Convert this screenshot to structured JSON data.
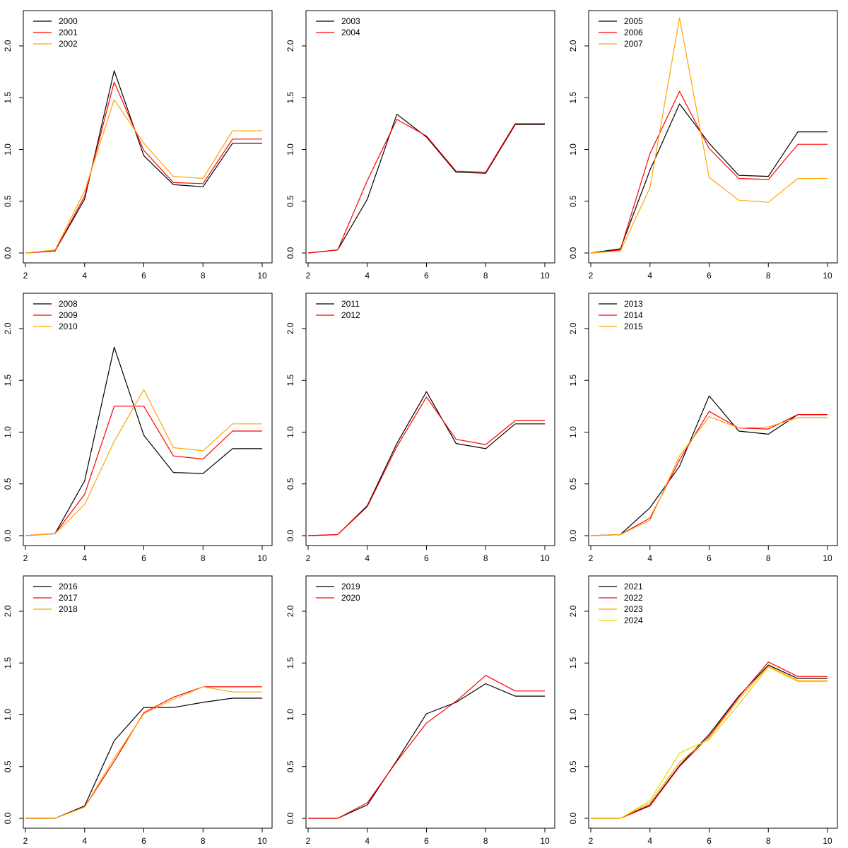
{
  "chart_data": [
    {
      "type": "line",
      "x": [
        2,
        3,
        4,
        5,
        6,
        7,
        8,
        9,
        10
      ],
      "xlim": [
        2,
        10
      ],
      "ylim": [
        0,
        2.3
      ],
      "xticks": [
        "2",
        "4",
        "6",
        "8",
        "10"
      ],
      "yticks": [
        "0.0",
        "0.5",
        "1.0",
        "1.5",
        "2.0"
      ],
      "legend_position": "top-left",
      "grid": false,
      "series": [
        {
          "name": "2000",
          "color": "#000000",
          "values": [
            0.0,
            0.02,
            0.52,
            1.76,
            0.94,
            0.66,
            0.64,
            1.06,
            1.06
          ]
        },
        {
          "name": "2001",
          "color": "#ff0000",
          "values": [
            0.0,
            0.02,
            0.55,
            1.65,
            0.99,
            0.68,
            0.67,
            1.1,
            1.1
          ]
        },
        {
          "name": "2002",
          "color": "#ffa500",
          "values": [
            0.0,
            0.03,
            0.6,
            1.48,
            1.06,
            0.74,
            0.72,
            1.18,
            1.18
          ]
        }
      ]
    },
    {
      "type": "line",
      "x": [
        2,
        3,
        4,
        5,
        6,
        7,
        8,
        9,
        10
      ],
      "xlim": [
        2,
        10
      ],
      "ylim": [
        0,
        2.3
      ],
      "xticks": [
        "2",
        "4",
        "6",
        "8",
        "10"
      ],
      "yticks": [
        "0.0",
        "0.5",
        "1.0",
        "1.5",
        "2.0"
      ],
      "legend_position": "top-left",
      "grid": false,
      "series": [
        {
          "name": "2003",
          "color": "#000000",
          "values": [
            0.0,
            0.03,
            0.52,
            1.34,
            1.12,
            0.78,
            0.77,
            1.24,
            1.24
          ]
        },
        {
          "name": "2004",
          "color": "#ff0000",
          "values": [
            0.0,
            0.03,
            0.7,
            1.29,
            1.13,
            0.79,
            0.78,
            1.25,
            1.25
          ]
        }
      ]
    },
    {
      "type": "line",
      "x": [
        2,
        3,
        4,
        5,
        6,
        7,
        8,
        9,
        10
      ],
      "xlim": [
        2,
        10
      ],
      "ylim": [
        0,
        2.3
      ],
      "xticks": [
        "2",
        "4",
        "6",
        "8",
        "10"
      ],
      "yticks": [
        "0.0",
        "0.5",
        "1.0",
        "1.5",
        "2.0"
      ],
      "legend_position": "top-left",
      "grid": false,
      "series": [
        {
          "name": "2005",
          "color": "#000000",
          "values": [
            0.0,
            0.04,
            0.8,
            1.44,
            1.06,
            0.75,
            0.74,
            1.17,
            1.17
          ]
        },
        {
          "name": "2006",
          "color": "#ff0000",
          "values": [
            0.0,
            0.03,
            0.96,
            1.56,
            1.01,
            0.72,
            0.71,
            1.05,
            1.05
          ]
        },
        {
          "name": "2007",
          "color": "#ffa500",
          "values": [
            0.0,
            0.02,
            0.63,
            2.27,
            0.73,
            0.51,
            0.49,
            0.72,
            0.72
          ]
        }
      ]
    },
    {
      "type": "line",
      "x": [
        2,
        3,
        4,
        5,
        6,
        7,
        8,
        9,
        10
      ],
      "xlim": [
        2,
        10
      ],
      "ylim": [
        0,
        2.3
      ],
      "xticks": [
        "2",
        "4",
        "6",
        "8",
        "10"
      ],
      "yticks": [
        "0.0",
        "0.5",
        "1.0",
        "1.5",
        "2.0"
      ],
      "legend_position": "top-left",
      "grid": false,
      "series": [
        {
          "name": "2008",
          "color": "#000000",
          "values": [
            0.0,
            0.02,
            0.53,
            1.82,
            0.97,
            0.61,
            0.6,
            0.84,
            0.84
          ]
        },
        {
          "name": "2009",
          "color": "#ff0000",
          "values": [
            0.0,
            0.02,
            0.4,
            1.25,
            1.25,
            0.77,
            0.74,
            1.01,
            1.01
          ]
        },
        {
          "name": "2010",
          "color": "#ffa500",
          "values": [
            0.0,
            0.02,
            0.3,
            0.91,
            1.41,
            0.85,
            0.82,
            1.08,
            1.08
          ]
        }
      ]
    },
    {
      "type": "line",
      "x": [
        2,
        3,
        4,
        5,
        6,
        7,
        8,
        9,
        10
      ],
      "xlim": [
        2,
        10
      ],
      "ylim": [
        0,
        2.3
      ],
      "xticks": [
        "2",
        "4",
        "6",
        "8",
        "10"
      ],
      "yticks": [
        "0.0",
        "0.5",
        "1.0",
        "1.5",
        "2.0"
      ],
      "legend_position": "top-left",
      "grid": false,
      "series": [
        {
          "name": "2011",
          "color": "#000000",
          "values": [
            0.0,
            0.01,
            0.29,
            0.89,
            1.39,
            0.89,
            0.84,
            1.08,
            1.08
          ]
        },
        {
          "name": "2012",
          "color": "#ff0000",
          "values": [
            0.0,
            0.01,
            0.28,
            0.86,
            1.34,
            0.93,
            0.88,
            1.11,
            1.11
          ]
        }
      ]
    },
    {
      "type": "line",
      "x": [
        2,
        3,
        4,
        5,
        6,
        7,
        8,
        9,
        10
      ],
      "xlim": [
        2,
        10
      ],
      "ylim": [
        0,
        2.3
      ],
      "xticks": [
        "2",
        "4",
        "6",
        "8",
        "10"
      ],
      "yticks": [
        "0.0",
        "0.5",
        "1.0",
        "1.5",
        "2.0"
      ],
      "legend_position": "top-left",
      "grid": false,
      "series": [
        {
          "name": "2013",
          "color": "#000000",
          "values": [
            0.0,
            0.01,
            0.27,
            0.67,
            1.35,
            1.01,
            0.98,
            1.17,
            1.17
          ]
        },
        {
          "name": "2014",
          "color": "#ff0000",
          "values": [
            0.0,
            0.01,
            0.17,
            0.73,
            1.2,
            1.04,
            1.03,
            1.17,
            1.17
          ]
        },
        {
          "name": "2015",
          "color": "#ffa500",
          "values": [
            0.0,
            0.01,
            0.15,
            0.77,
            1.15,
            1.04,
            1.05,
            1.14,
            1.14
          ]
        }
      ]
    },
    {
      "type": "line",
      "x": [
        2,
        3,
        4,
        5,
        6,
        7,
        8,
        9,
        10
      ],
      "xlim": [
        2,
        10
      ],
      "ylim": [
        0,
        2.3
      ],
      "xticks": [
        "2",
        "4",
        "6",
        "8",
        "10"
      ],
      "yticks": [
        "0.0",
        "0.5",
        "1.0",
        "1.5",
        "2.0"
      ],
      "legend_position": "top-left",
      "grid": false,
      "series": [
        {
          "name": "2016",
          "color": "#000000",
          "values": [
            0.0,
            0.0,
            0.12,
            0.75,
            1.07,
            1.07,
            1.12,
            1.16,
            1.16
          ]
        },
        {
          "name": "2017",
          "color": "#ff0000",
          "values": [
            0.0,
            0.0,
            0.11,
            0.55,
            1.02,
            1.17,
            1.27,
            1.27,
            1.27
          ]
        },
        {
          "name": "2018",
          "color": "#ffa500",
          "values": [
            0.0,
            0.0,
            0.11,
            0.58,
            1.01,
            1.15,
            1.27,
            1.22,
            1.22
          ]
        }
      ]
    },
    {
      "type": "line",
      "x": [
        2,
        3,
        4,
        5,
        6,
        7,
        8,
        9,
        10
      ],
      "xlim": [
        2,
        10
      ],
      "ylim": [
        0,
        2.3
      ],
      "xticks": [
        "2",
        "4",
        "6",
        "8",
        "10"
      ],
      "yticks": [
        "0.0",
        "0.5",
        "1.0",
        "1.5",
        "2.0"
      ],
      "legend_position": "top-left",
      "grid": false,
      "series": [
        {
          "name": "2019",
          "color": "#000000",
          "values": [
            0.0,
            0.0,
            0.13,
            0.56,
            1.01,
            1.12,
            1.3,
            1.18,
            1.18
          ]
        },
        {
          "name": "2020",
          "color": "#ff0000",
          "values": [
            0.0,
            0.0,
            0.15,
            0.55,
            0.92,
            1.13,
            1.38,
            1.23,
            1.23
          ]
        }
      ]
    },
    {
      "type": "line",
      "x": [
        2,
        3,
        4,
        5,
        6,
        7,
        8,
        9,
        10
      ],
      "xlim": [
        2,
        10
      ],
      "ylim": [
        0,
        2.3
      ],
      "xticks": [
        "2",
        "4",
        "6",
        "8",
        "10"
      ],
      "yticks": [
        "0.0",
        "0.5",
        "1.0",
        "1.5",
        "2.0"
      ],
      "legend_position": "top-left",
      "grid": false,
      "series": [
        {
          "name": "2021",
          "color": "#000000",
          "values": [
            0.0,
            0.0,
            0.13,
            0.51,
            0.81,
            1.18,
            1.48,
            1.35,
            1.35
          ]
        },
        {
          "name": "2022",
          "color": "#ff0000",
          "values": [
            0.0,
            0.0,
            0.12,
            0.5,
            0.79,
            1.17,
            1.51,
            1.37,
            1.37
          ]
        },
        {
          "name": "2023",
          "color": "#ffa500",
          "values": [
            0.0,
            0.0,
            0.15,
            0.54,
            0.78,
            1.15,
            1.47,
            1.33,
            1.33
          ]
        },
        {
          "name": "2024",
          "color": "#e6d800",
          "values": [
            0.0,
            0.0,
            0.17,
            0.63,
            0.76,
            1.1,
            1.46,
            1.32,
            1.32
          ]
        }
      ]
    }
  ]
}
